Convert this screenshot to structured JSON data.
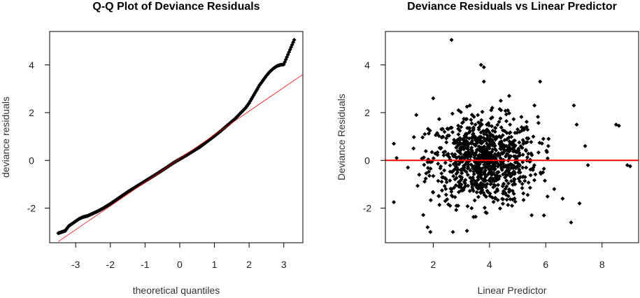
{
  "chart_data": [
    {
      "type": "scatter",
      "title": "Q-Q Plot of Deviance Residuals",
      "xlabel": "theoretical quantiles",
      "ylabel": "deviance residuals",
      "xlim": [
        -3.75,
        3.55
      ],
      "ylim": [
        -3.45,
        5.4
      ],
      "xticks": [
        -3,
        -2,
        -1,
        0,
        1,
        2,
        3
      ],
      "yticks": [
        -2,
        0,
        2,
        4
      ],
      "point_color": "#000000",
      "reference_line": {
        "color": "#ff0000",
        "from": [
          -3.5,
          -3.4
        ],
        "to": [
          3.55,
          3.6
        ]
      },
      "series": [
        {
          "points": [
            [
              -3.5,
              -3.05
            ],
            [
              -3.3,
              -2.95
            ],
            [
              -3.2,
              -2.75
            ],
            [
              -3.1,
              -2.65
            ],
            [
              -3.0,
              -2.55
            ],
            [
              -2.9,
              -2.45
            ],
            [
              -2.8,
              -2.38
            ],
            [
              -2.65,
              -2.32
            ],
            [
              -2.5,
              -2.22
            ],
            [
              -2.35,
              -2.12
            ],
            [
              -2.2,
              -2.0
            ],
            [
              -2.0,
              -1.82
            ],
            [
              -1.8,
              -1.62
            ],
            [
              -1.5,
              -1.32
            ],
            [
              -1.2,
              -1.05
            ],
            [
              -1.0,
              -0.87
            ],
            [
              -0.7,
              -0.6
            ],
            [
              -0.4,
              -0.32
            ],
            [
              -0.2,
              -0.12
            ],
            [
              0.0,
              0.05
            ],
            [
              0.2,
              0.22
            ],
            [
              0.4,
              0.4
            ],
            [
              0.6,
              0.58
            ],
            [
              0.8,
              0.8
            ],
            [
              1.0,
              1.02
            ],
            [
              1.2,
              1.25
            ],
            [
              1.4,
              1.5
            ],
            [
              1.6,
              1.75
            ],
            [
              1.8,
              2.05
            ],
            [
              1.9,
              2.2
            ],
            [
              2.0,
              2.4
            ],
            [
              2.1,
              2.65
            ],
            [
              2.2,
              2.9
            ],
            [
              2.3,
              3.15
            ],
            [
              2.4,
              3.35
            ],
            [
              2.5,
              3.55
            ],
            [
              2.6,
              3.72
            ],
            [
              2.7,
              3.85
            ],
            [
              2.8,
              3.95
            ],
            [
              2.9,
              4.0
            ],
            [
              3.0,
              4.02
            ],
            [
              3.3,
              5.05
            ]
          ]
        }
      ]
    },
    {
      "type": "scatter",
      "title": "Deviance Residuals vs Linear Predictor",
      "xlabel": "Linear Predictor",
      "ylabel": "Deviance Residuals",
      "xlim": [
        0.3,
        9.3
      ],
      "ylim": [
        -3.45,
        5.4
      ],
      "xticks": [
        2,
        4,
        6,
        8
      ],
      "yticks": [
        -2,
        0,
        2,
        4
      ],
      "point_color": "#000000",
      "reference_line": {
        "color": "#ff0000",
        "y": 0
      },
      "series": [
        {
          "points": [
            [
              0.6,
              -1.75
            ],
            [
              0.6,
              0.7
            ],
            [
              0.7,
              0.1
            ],
            [
              1.1,
              -0.3
            ],
            [
              1.3,
              0.5
            ],
            [
              1.4,
              1.9
            ],
            [
              1.5,
              -0.6
            ],
            [
              1.7,
              1.1
            ],
            [
              1.8,
              -2.8
            ],
            [
              1.9,
              -3.0
            ],
            [
              2.0,
              2.6
            ],
            [
              2.2,
              -1.5
            ],
            [
              2.4,
              1.2
            ],
            [
              2.6,
              -1.9
            ],
            [
              2.65,
              5.05
            ],
            [
              2.7,
              -3.0
            ],
            [
              2.9,
              2.1
            ],
            [
              3.0,
              0.7
            ],
            [
              3.0,
              -0.8
            ],
            [
              3.2,
              -2.95
            ],
            [
              3.3,
              0.3
            ],
            [
              3.3,
              2.3
            ],
            [
              3.4,
              -1.2
            ],
            [
              3.5,
              1.5
            ],
            [
              3.6,
              -0.2
            ],
            [
              3.7,
              4.0
            ],
            [
              3.8,
              3.9
            ],
            [
              3.8,
              3.3
            ],
            [
              3.9,
              -2.2
            ],
            [
              4.0,
              0.8
            ],
            [
              4.0,
              -0.5
            ],
            [
              4.1,
              1.8
            ],
            [
              4.2,
              -1.6
            ],
            [
              4.3,
              0.2
            ],
            [
              4.4,
              2.5
            ],
            [
              4.5,
              -1.0
            ],
            [
              4.6,
              0.6
            ],
            [
              4.7,
              2.7
            ],
            [
              4.8,
              -1.9
            ],
            [
              5.0,
              1.3
            ],
            [
              5.1,
              -0.7
            ],
            [
              5.3,
              0.4
            ],
            [
              5.5,
              -2.3
            ],
            [
              5.6,
              2.3
            ],
            [
              5.8,
              3.3
            ],
            [
              5.9,
              -0.5
            ],
            [
              6.1,
              0.9
            ],
            [
              6.3,
              -1.2
            ],
            [
              6.6,
              -1.6
            ],
            [
              6.9,
              -2.6
            ],
            [
              7.0,
              2.3
            ],
            [
              7.1,
              1.5
            ],
            [
              7.2,
              -1.8
            ],
            [
              7.4,
              0.6
            ],
            [
              7.5,
              -0.2
            ],
            [
              8.5,
              1.5
            ],
            [
              8.6,
              1.45
            ],
            [
              8.9,
              -0.2
            ],
            [
              9.0,
              -0.25
            ]
          ],
          "cloud": {
            "x_center": 3.8,
            "x_spread": 0.95,
            "y_spread": 0.9,
            "count": 900
          }
        }
      ]
    }
  ]
}
